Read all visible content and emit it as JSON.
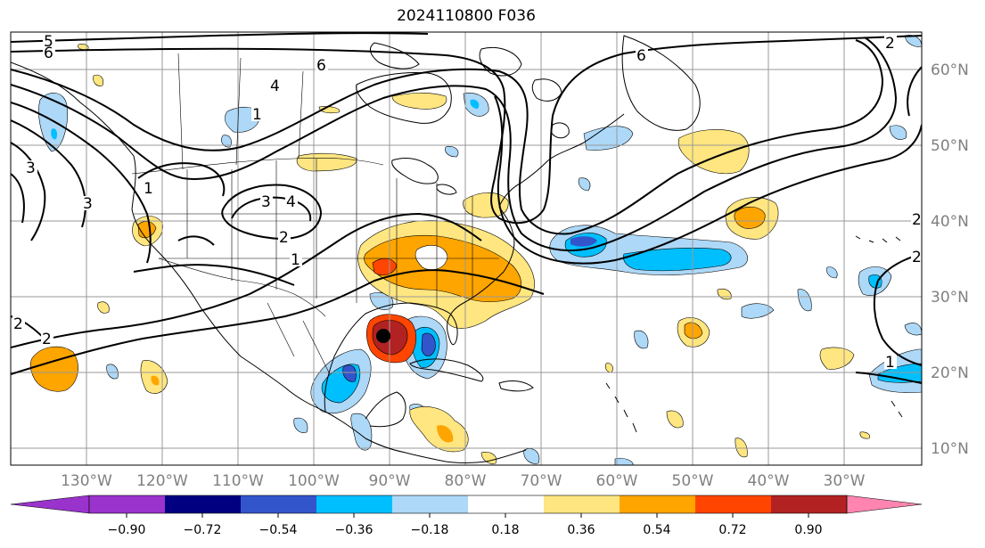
{
  "title": "2024110800 F036",
  "lat_labels": [
    "60°N",
    "50°N",
    "40°N",
    "30°N",
    "20°N",
    "10°N"
  ],
  "lon_labels": [
    "130°W",
    "120°W",
    "110°W",
    "100°W",
    "90°W",
    "80°W",
    "70°W",
    "60°W",
    "50°W",
    "40°W",
    "30°W"
  ],
  "colorbar": {
    "colors": [
      "#9933cc",
      "#000080",
      "#3355cc",
      "#00bfff",
      "#add8f7",
      "#ffffff",
      "#ffe680",
      "#ffa500",
      "#ff4500",
      "#b22222",
      "#ff85b0"
    ],
    "labels": [
      "−0.90",
      "−0.72",
      "−0.54",
      "−0.36",
      "−0.18",
      "0.18",
      "0.36",
      "0.54",
      "0.72",
      "0.90"
    ]
  },
  "contour_labels": [
    "5",
    "6",
    "6",
    "6",
    "4",
    "3",
    "3",
    "4",
    "3",
    "2",
    "1",
    "1",
    "2",
    "2",
    "2",
    "1",
    "1",
    "2",
    "2"
  ],
  "marker": "storm center"
}
